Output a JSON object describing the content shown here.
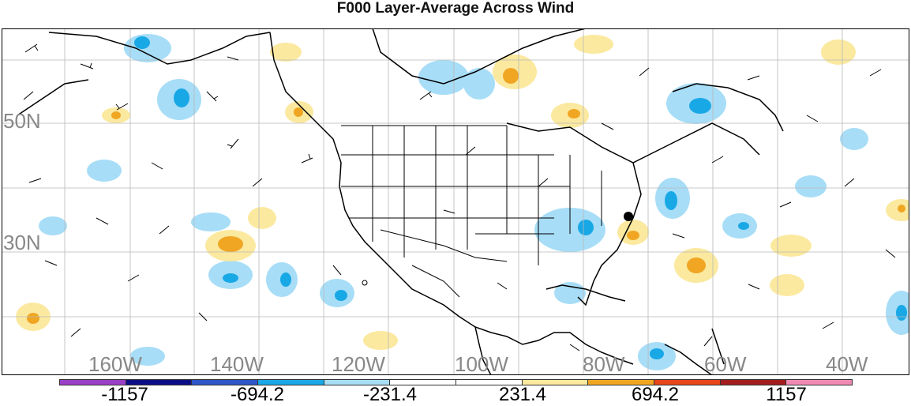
{
  "title": "F000 Layer-Average Across Wind",
  "lat_labels": [
    "50N",
    "30N"
  ],
  "lon_labels": [
    "160W",
    "140W",
    "120W",
    "100W",
    "80W",
    "60W",
    "40W"
  ],
  "colorbar": {
    "colors": [
      "#9b3fc7",
      "#0b0e87",
      "#2f56c9",
      "#19a8e6",
      "#a7ddf7",
      "#ffffff",
      "#ffffff",
      "#fbe9a0",
      "#f0a623",
      "#e8451a",
      "#a31c1e",
      "#f08ab5"
    ],
    "labels": [
      "-1157",
      "-694.2",
      "-231.4",
      "231.4",
      "694.2",
      "1157"
    ]
  },
  "palette": {
    "light_blue": "#a7ddf7",
    "blue": "#19a8e6",
    "light_yellow": "#fbe9a0",
    "orange": "#f0a623"
  }
}
